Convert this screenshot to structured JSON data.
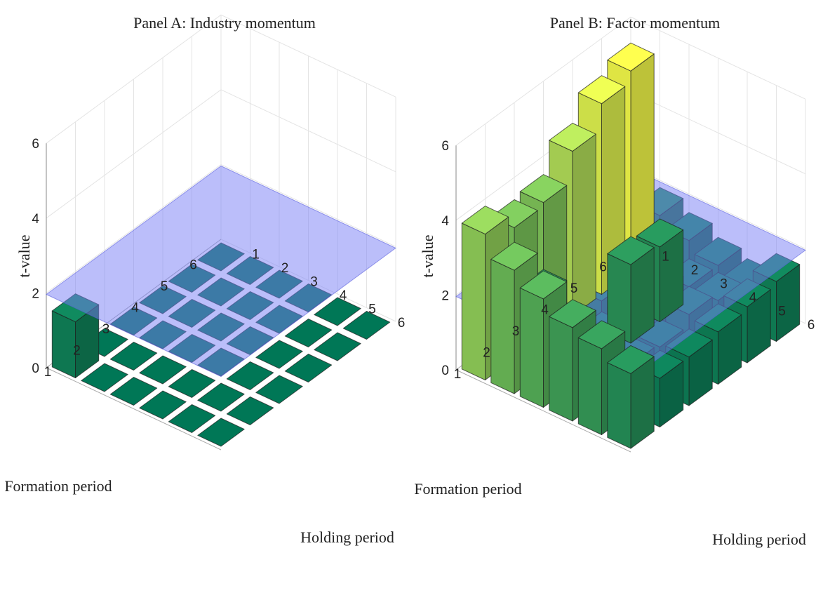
{
  "chart_data": [
    {
      "type": "bar3d",
      "title": "Panel A: Industry momentum",
      "xlabel": "Holding period",
      "ylabel": "Formation period",
      "zlabel": "t-value",
      "x_categories": [
        "1",
        "2",
        "3",
        "4",
        "5",
        "6"
      ],
      "y_categories": [
        "1",
        "2",
        "3",
        "4",
        "5",
        "6"
      ],
      "z_ticks": [
        "0",
        "2",
        "4",
        "6"
      ],
      "zlim": [
        0,
        6
      ],
      "reference_plane": 1.96,
      "values": [
        [
          1.5,
          0.0,
          0.0,
          0.0,
          0.0,
          0.0
        ],
        [
          0.0,
          0.0,
          0.0,
          0.0,
          0.0,
          0.0
        ],
        [
          0.0,
          0.0,
          0.0,
          0.0,
          0.0,
          0.0
        ],
        [
          0.0,
          0.0,
          0.0,
          0.0,
          0.0,
          0.0
        ],
        [
          0.0,
          0.0,
          0.0,
          0.0,
          0.0,
          0.0
        ],
        [
          0.0,
          0.0,
          0.0,
          0.0,
          0.0,
          0.0
        ]
      ]
    },
    {
      "type": "bar3d",
      "title": "Panel B: Factor momentum",
      "xlabel": "Holding period",
      "ylabel": "Formation period",
      "zlabel": "t-value",
      "x_categories": [
        "1",
        "2",
        "3",
        "4",
        "5",
        "6"
      ],
      "y_categories": [
        "1",
        "2",
        "3",
        "4",
        "5",
        "6"
      ],
      "z_ticks": [
        "0",
        "2",
        "4",
        "6"
      ],
      "zlim": [
        0,
        6
      ],
      "reference_plane": 1.96,
      "values": [
        [
          3.9,
          3.5,
          3.6,
          4.4,
          5.1,
          5.4
        ],
        [
          3.3,
          2.0,
          1.6,
          1.6,
          1.7,
          1.9
        ],
        [
          2.9,
          1.5,
          1.7,
          2.1,
          2.0,
          1.6
        ],
        [
          2.5,
          1.6,
          1.6,
          1.7,
          1.3,
          1.3
        ],
        [
          2.3,
          1.3,
          1.2,
          1.5,
          1.3,
          1.1
        ],
        [
          2.0,
          1.3,
          1.3,
          1.4,
          1.5,
          1.6
        ]
      ]
    }
  ]
}
